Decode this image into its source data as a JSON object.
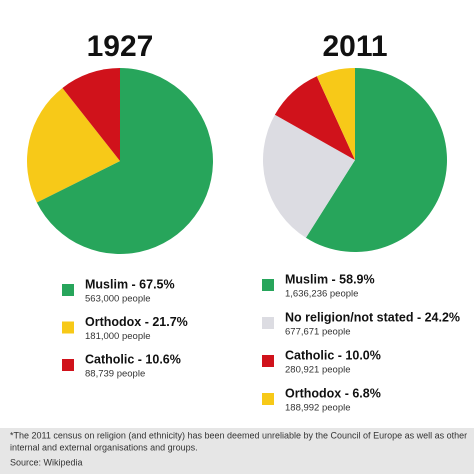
{
  "chart_data": [
    {
      "type": "pie",
      "title": "1927",
      "values": [
        67.5,
        21.7,
        10.6
      ],
      "value_labels": [
        "Muslim - 67.5%",
        "Orthodox - 21.7%",
        "Catholic - 10.6%"
      ],
      "people": [
        {
          "value": 563000,
          "label": "563,000 people"
        },
        {
          "value": 181000,
          "label": "181,000 people"
        },
        {
          "value": 88739,
          "label": "88,739 people"
        }
      ],
      "colors": [
        "#27a55b",
        "#f7c918",
        "#d0121b"
      ]
    },
    {
      "type": "pie",
      "title": "2011",
      "values": [
        58.9,
        24.2,
        10.0,
        6.8
      ],
      "value_labels": [
        "Muslim - 58.9%",
        "No religion/not stated - 24.2%",
        "Catholic - 10.0%",
        "Orthodox - 6.8%"
      ],
      "people": [
        {
          "value": 1636236,
          "label": "1,636,236 people"
        },
        {
          "value": 677671,
          "label": "677,671 people"
        },
        {
          "value": 280921,
          "label": "280,921 people"
        },
        {
          "value": 188992,
          "label": "188,992 people"
        }
      ],
      "colors": [
        "#27a55b",
        "#dcdce2",
        "#d0121b",
        "#f7c918"
      ]
    }
  ],
  "footnote": {
    "lines": [
      "*The 2011 census on religion (and ethnicity) has been deemed unreliable by the Council of Europe as well as other",
      "internal and external organisations and groups.",
      "Source: Wikipedia"
    ]
  }
}
